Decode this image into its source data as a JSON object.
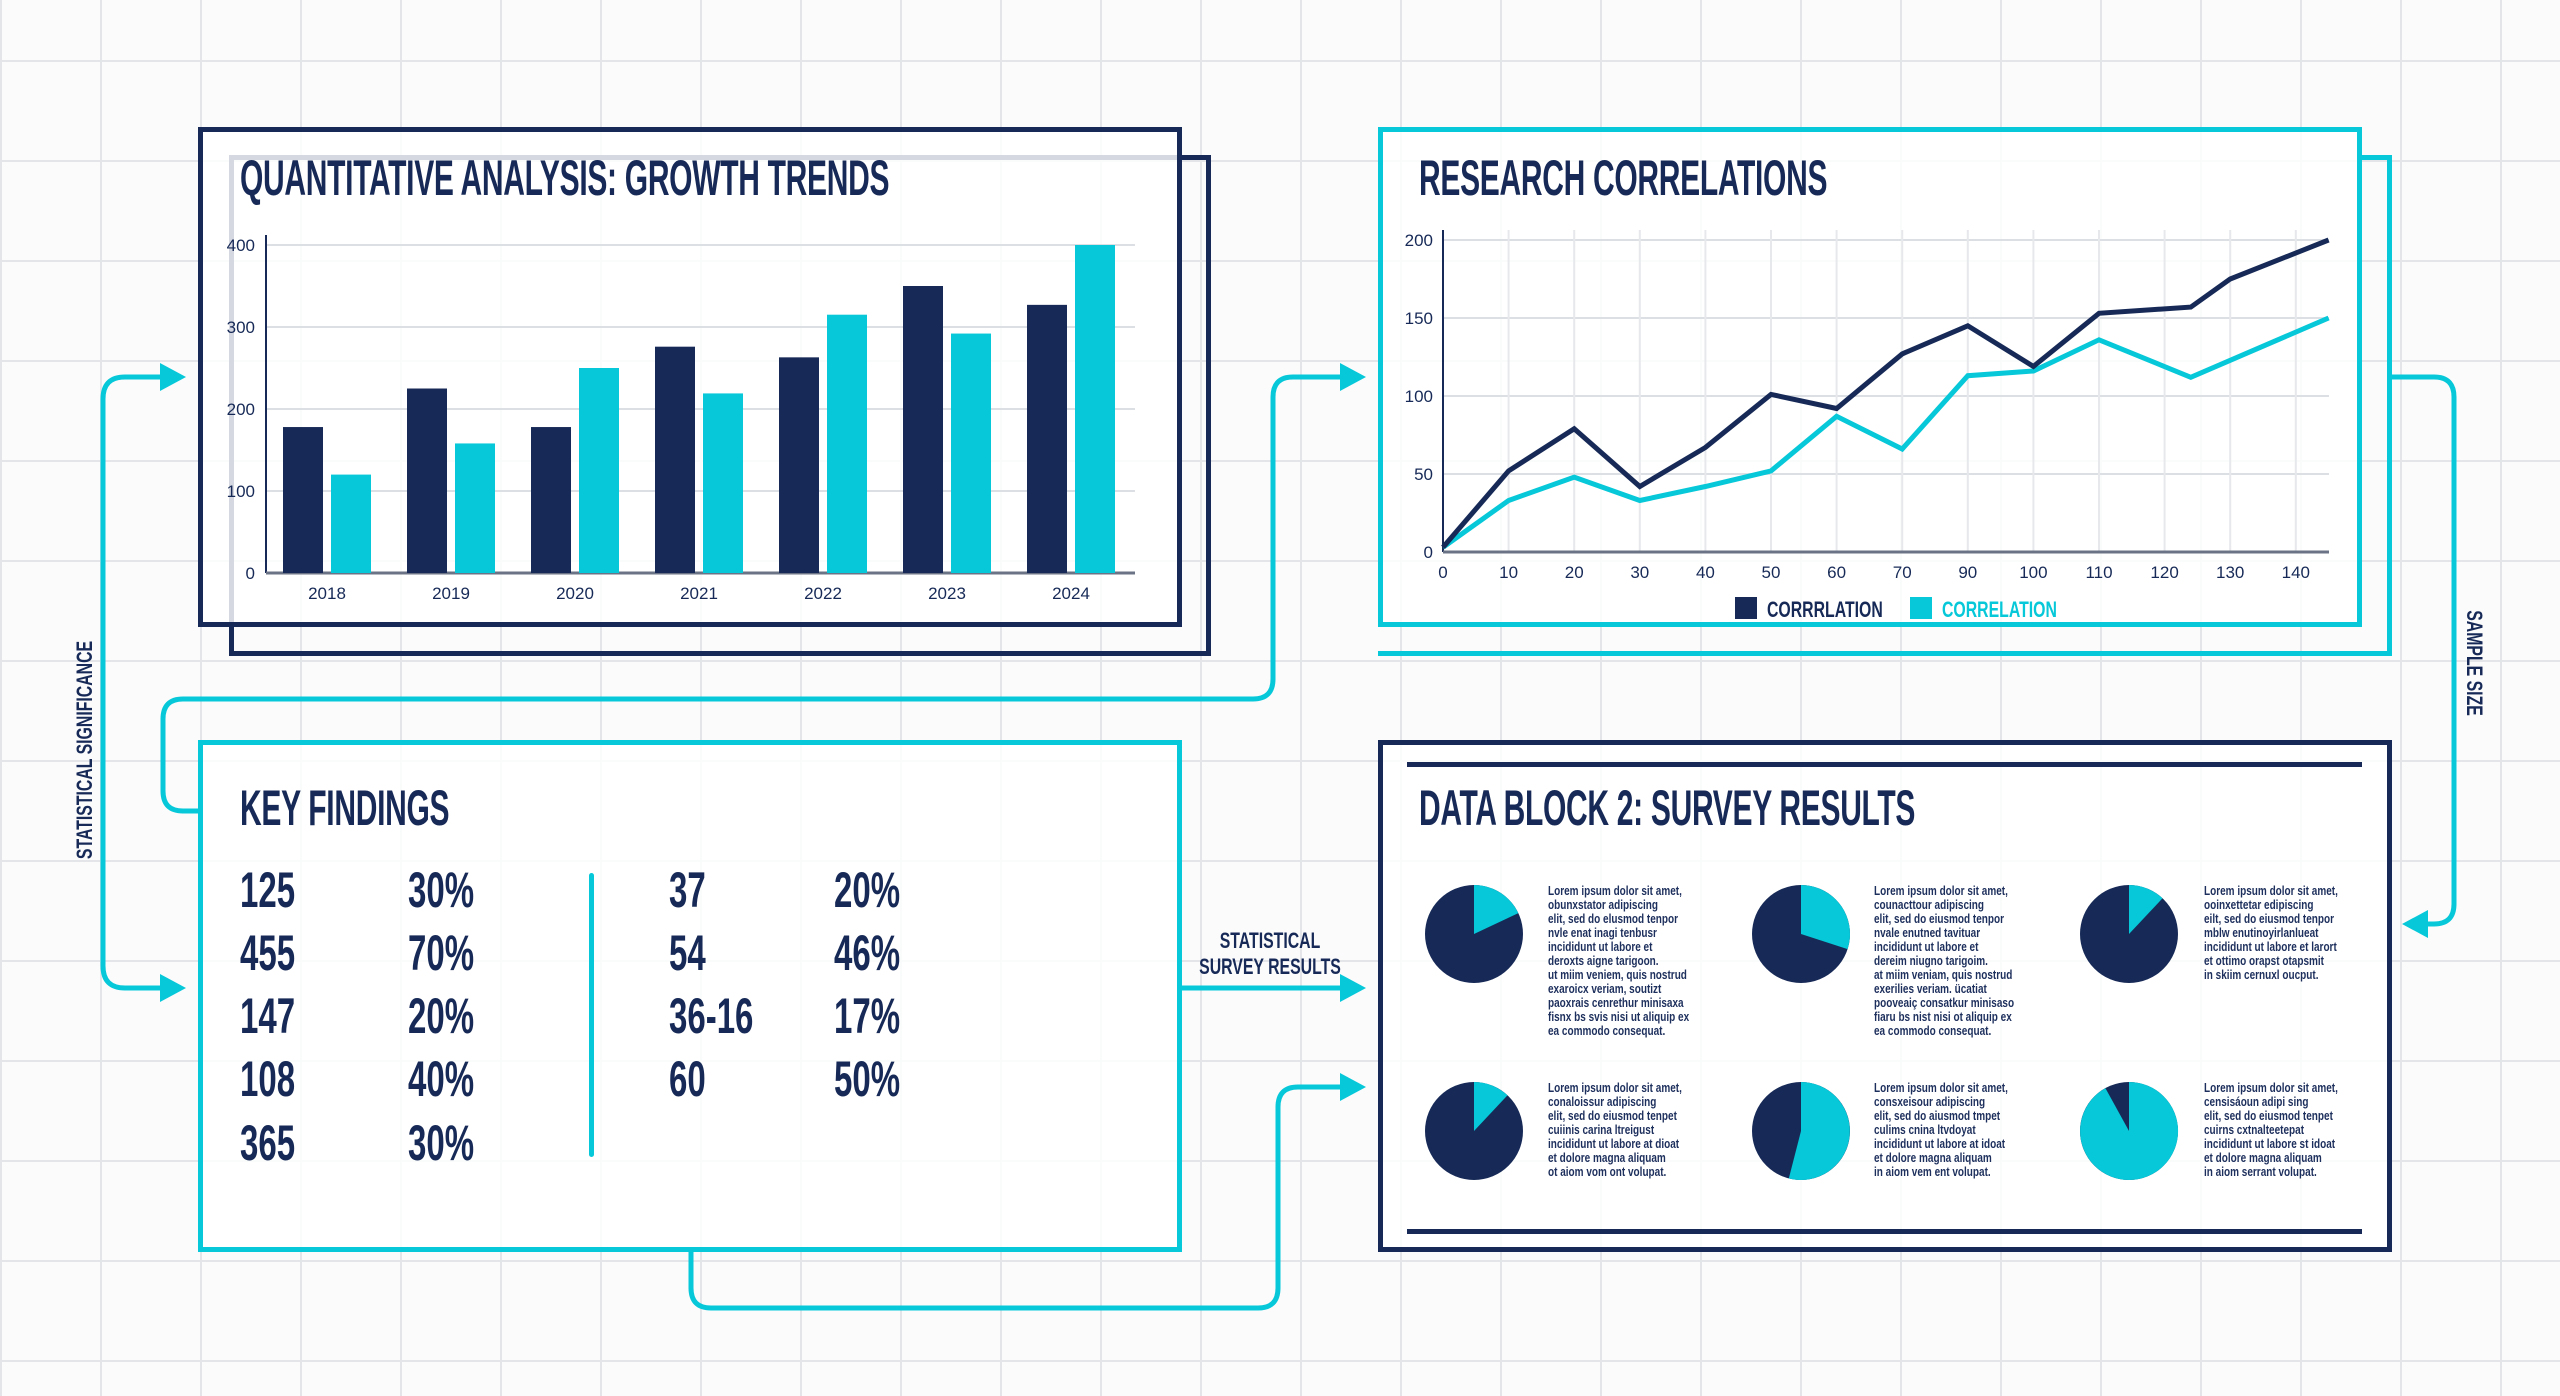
{
  "colors": {
    "navy": "#172a57",
    "cyan": "#06c8d8"
  },
  "growth": {
    "title": "QUANTITATIVE ANALYSIS: GROWTH TRENDS"
  },
  "research": {
    "title": "RESEARCH CORRELATIONS"
  },
  "findings": {
    "title": "KEY FINDINGS",
    "left": [
      [
        "125",
        "30%"
      ],
      [
        "455",
        "70%"
      ],
      [
        "147",
        "20%"
      ],
      [
        "108",
        "40%"
      ],
      [
        "365",
        "30%"
      ]
    ],
    "right": [
      [
        "37",
        "20%"
      ],
      [
        "54",
        "46%"
      ],
      [
        "36-16",
        "17%"
      ],
      [
        "60",
        "50%"
      ]
    ]
  },
  "survey": {
    "title": "DATA BLOCK 2: SURVEY RESULTS",
    "items": [
      {
        "cyan_fraction": 0.18,
        "lines": [
          "Lorem ipsum dolor sit amet,",
          "obunxstator adipiscing",
          "elit, sed do elusmod tenpor",
          "nvle enat inagi tenbusr",
          "incididunt ut labore et",
          "deroxts aigne tarigoon.",
          "ut miim veniem, quis nostrud",
          "exaroicx veriam, soutizt",
          "paoxrais cenrethur minisaxa",
          "fisnx bs svis nisi ut aliquip ex",
          "ea commodo consequat."
        ]
      },
      {
        "cyan_fraction": 0.3,
        "lines": [
          "Lorem ipsum dolor sit amet,",
          "counacttour adipiscing",
          "elit, sed do eiusmod tenpor",
          "nvale enutned tavituar",
          "incididunt ut labore et",
          "dereim niugno tarigoim.",
          "at miim veniam, quis nostrud",
          "exerilies veriam. ücatiat",
          "pooveaiç consatkur minisaso",
          "fiaru bs nist nisi ot aliquip ex",
          "ea commodo consequat."
        ]
      },
      {
        "cyan_fraction": 0.12,
        "lines": [
          "Lorem ipsum dolor sit amet,",
          "ooinxettetar edipiscing",
          "eilt, sed do eiusmod tenpor",
          "mblw enutinoyirlanlueat",
          "incididunt ut labore et larort",
          "et ottimo orapst otapsmit",
          "in skiim cernuxl oucput."
        ]
      },
      {
        "cyan_fraction": 0.12,
        "lines": [
          "Lorem ipsum dolor sit amet,",
          "conaloissur adipiscing",
          "elit, sed do eiusmod tenpet",
          "cuiinis carina ltreigust",
          "incididunt ut labore at dioat",
          "et dolore magna aliquam",
          "ot aiom vom ont volupat."
        ]
      },
      {
        "cyan_fraction": 0.54,
        "lines": [
          "Lorem ipsum dolor sit amet,",
          "consxeisour adipiscing",
          "elit, sed do aiusmod tmpet",
          "culims cnina ltvdoyat",
          "incididunt ut labore at idoat",
          "et dolore magna aliquam",
          "in aiom vem ent volupat."
        ]
      },
      {
        "cyan_fraction": 0.92,
        "lines": [
          "Lorem ipsum dolor sit amet,",
          "censisáoun adipi sing",
          "elit, sed do eiusmod tenpet",
          "cuirns cxtnalteetepat",
          "incididunt ut labore st idoat",
          "et dolore magna aliquam",
          "in aiom serrant volupat."
        ]
      }
    ]
  },
  "connectors": {
    "left_label": "STATISTICAL SIGNIFICANCE",
    "middle_label": [
      "STATISTICAL",
      "SURVEY RESULTS"
    ],
    "right_label": "SAMPLE SIZE"
  },
  "chart_data": [
    {
      "type": "bar",
      "title": "QUANTITATIVE ANALYSIS: GROWTH TRENDS",
      "categories": [
        "2018",
        "2019",
        "2020",
        "2021",
        "2022",
        "2023",
        "2024"
      ],
      "series": [
        {
          "color": "#172a57",
          "values": [
            178,
            225,
            178,
            276,
            263,
            350,
            327
          ]
        },
        {
          "color": "#06c8d8",
          "values": [
            120,
            158,
            250,
            219,
            315,
            292,
            400
          ]
        }
      ],
      "yticks": [
        0,
        100,
        200,
        300,
        400
      ],
      "ylim": [
        0,
        400
      ],
      "grid": true
    },
    {
      "type": "line",
      "title": "RESEARCH CORRELATIONS",
      "xticks": [
        0,
        10,
        20,
        30,
        40,
        50,
        60,
        70,
        90,
        100,
        110,
        120,
        130,
        140
      ],
      "yticks": [
        0,
        50,
        100,
        150,
        200
      ],
      "ylim": [
        0,
        200
      ],
      "grid": true,
      "legend_position": "bottom",
      "series": [
        {
          "name": "CORRRLATION",
          "color": "#172a57",
          "points": [
            [
              0,
              3
            ],
            [
              10,
              52
            ],
            [
              20,
              79
            ],
            [
              30,
              42
            ],
            [
              40,
              67
            ],
            [
              50,
              101
            ],
            [
              60,
              92
            ],
            [
              70,
              127
            ],
            [
              90,
              145
            ],
            [
              100,
              119
            ],
            [
              110,
              153
            ],
            [
              124,
              157
            ],
            [
              130,
              175
            ],
            [
              145,
              200
            ]
          ]
        },
        {
          "name": "CORRELATION",
          "color": "#06c8d8",
          "points": [
            [
              0,
              3
            ],
            [
              10,
              33
            ],
            [
              20,
              48
            ],
            [
              30,
              33
            ],
            [
              40,
              42
            ],
            [
              50,
              52
            ],
            [
              60,
              87
            ],
            [
              70,
              66
            ],
            [
              90,
              113
            ],
            [
              100,
              116
            ],
            [
              110,
              136
            ],
            [
              124,
              112
            ],
            [
              145,
              150
            ]
          ]
        }
      ]
    }
  ]
}
